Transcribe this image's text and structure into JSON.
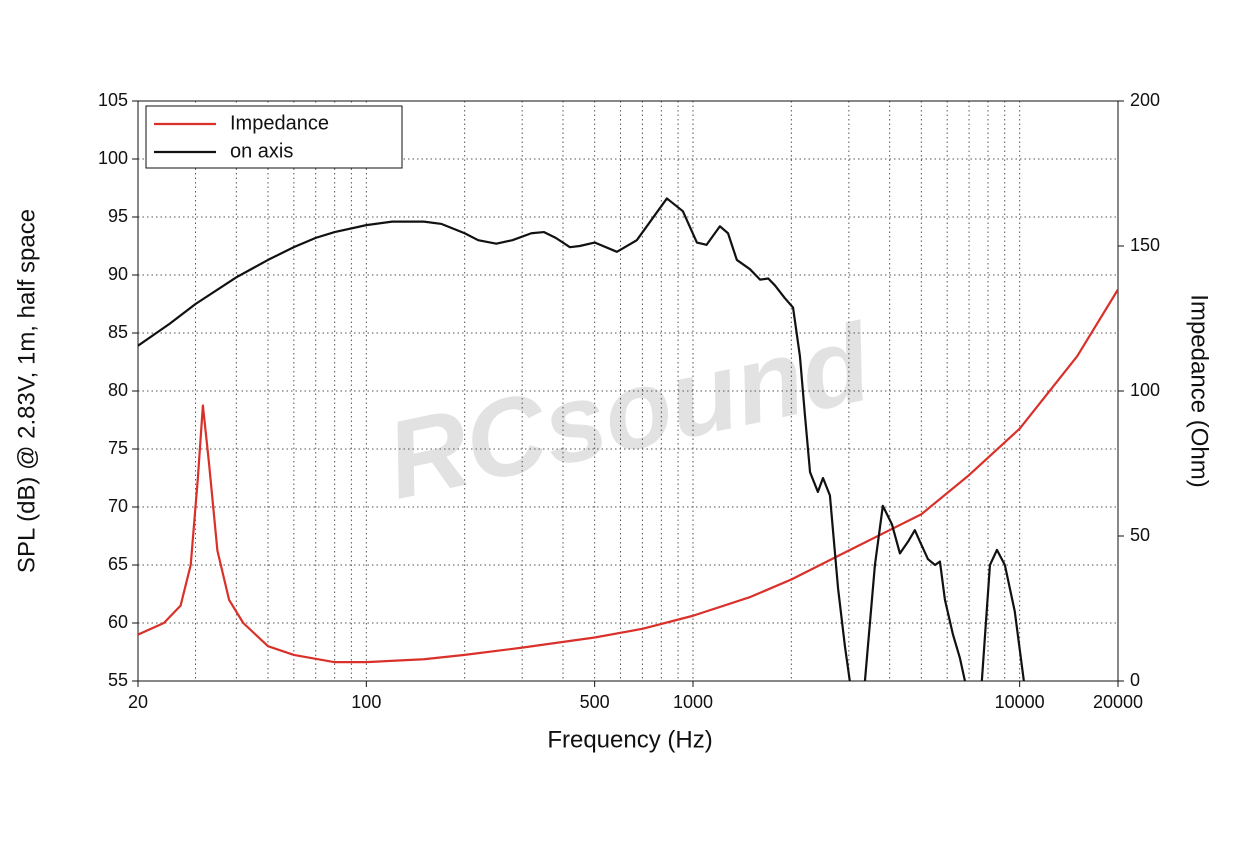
{
  "chart_data": {
    "type": "line",
    "xlabel": "Frequency (Hz)",
    "ylabel": "SPL (dB) @ 2.83V, 1m, half space",
    "y2label": "Impedance (Ohm)",
    "watermark": "RCsound",
    "xscale": "log",
    "grid": true,
    "legend": "upper left",
    "xlim": [
      20,
      20000
    ],
    "xticks": [
      20,
      100,
      500,
      1000,
      10000,
      20000
    ],
    "ylim": [
      55,
      105
    ],
    "yticks": [
      55,
      60,
      65,
      70,
      75,
      80,
      85,
      90,
      95,
      100,
      105
    ],
    "y2lim": [
      0,
      200
    ],
    "y2ticks": [
      0,
      50,
      100,
      150,
      200
    ],
    "series": [
      {
        "name": "Impedance",
        "color": "#d9302a",
        "axis": "y2",
        "x": [
          20,
          24,
          27,
          29,
          30.5,
          31.6,
          33,
          35,
          38,
          42,
          50,
          60,
          80,
          100,
          150,
          200,
          300,
          500,
          700,
          1000,
          1500,
          2000,
          3000,
          5000,
          7000,
          10000,
          15000,
          20000
        ],
        "values": [
          16,
          20,
          26,
          40,
          70,
          95,
          75,
          45,
          28,
          20,
          12,
          9,
          6.5,
          6.5,
          7.5,
          9,
          11.5,
          15,
          18,
          22.5,
          29,
          35,
          45,
          57.5,
          71,
          87,
          112,
          135
        ]
      },
      {
        "name": "on axis",
        "color": "#111111",
        "axis": "y",
        "x": [
          20,
          25,
          30,
          40,
          50,
          60,
          70,
          80,
          100,
          120,
          150,
          170,
          200,
          220,
          250,
          280,
          320,
          350,
          380,
          420,
          450,
          500,
          585,
          673,
          832,
          931,
          1028,
          1100,
          1209,
          1280,
          1362,
          1494,
          1604,
          1700,
          1782,
          1911,
          2024,
          2125,
          2200,
          2282,
          2412,
          2500,
          2625,
          2780,
          2918,
          3020,
          3200,
          3360,
          3605,
          3812,
          4065,
          4300,
          4550,
          4777,
          4955,
          5240,
          5510,
          5700,
          5905,
          6250,
          6560,
          6800,
          7200,
          7660,
          8110,
          8520,
          9010,
          9660,
          10300
        ],
        "values": [
          83.9,
          85.8,
          87.5,
          89.8,
          91.3,
          92.4,
          93.2,
          93.7,
          94.3,
          94.6,
          94.6,
          94.4,
          93.6,
          93.0,
          92.7,
          93.0,
          93.6,
          93.7,
          93.2,
          92.4,
          92.5,
          92.8,
          92.0,
          93.0,
          96.6,
          95.5,
          92.8,
          92.6,
          94.2,
          93.6,
          91.3,
          90.5,
          89.6,
          89.7,
          89.1,
          88.0,
          87.2,
          83,
          78,
          73,
          71.3,
          72.5,
          71,
          63,
          58,
          55,
          null,
          55,
          65,
          70.1,
          68.5,
          66,
          67,
          68,
          67,
          65.5,
          65,
          65.3,
          62,
          59,
          57,
          55,
          null,
          55,
          65,
          66.3,
          65,
          61,
          55
        ]
      }
    ]
  }
}
